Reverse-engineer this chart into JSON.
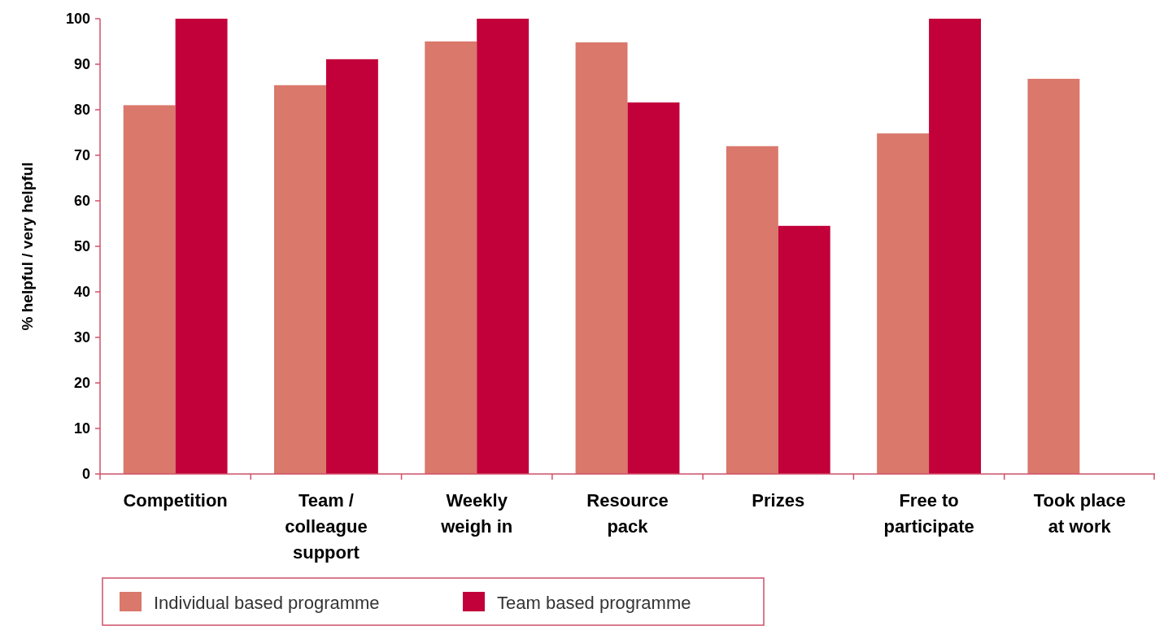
{
  "chart_data": {
    "type": "bar",
    "ylabel": "% helpful / very helpful",
    "categories": [
      "Competition",
      "Team / colleague support",
      "Weekly weigh in",
      "Resource pack",
      "Prizes",
      "Free to participate",
      "Took place at work"
    ],
    "series": [
      {
        "name": "Individual based programme",
        "color": "#d9786b",
        "values": [
          81,
          85.4,
          95,
          94.8,
          72,
          74.8,
          86.8
        ]
      },
      {
        "name": "Team based programme",
        "color": "#c2003a",
        "values": [
          100,
          91.1,
          100,
          81.6,
          54.5,
          100,
          null
        ]
      }
    ],
    "ylim": [
      0,
      100
    ],
    "yticks": [
      0,
      10,
      20,
      30,
      40,
      50,
      60,
      70,
      80,
      90,
      100
    ],
    "grid": false,
    "legend": "bottom"
  }
}
